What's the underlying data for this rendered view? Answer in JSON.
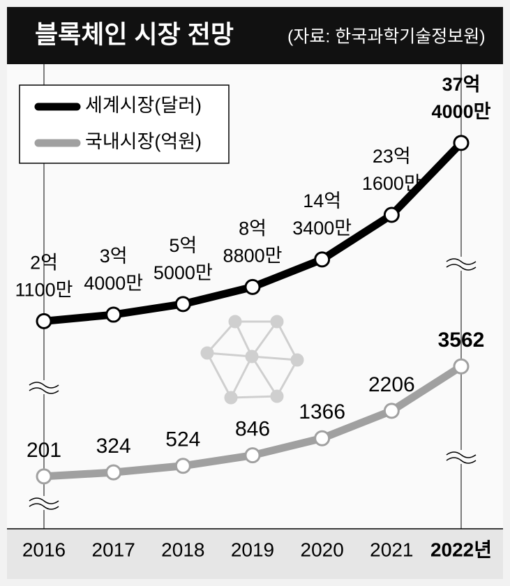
{
  "chart_data": {
    "type": "line",
    "title": "블록체인 시장 전망",
    "source": "(자료: 한국과학기술정보원)",
    "categories": [
      "2016",
      "2017",
      "2018",
      "2019",
      "2020",
      "2021",
      "2022년"
    ],
    "series": [
      {
        "name": "세계시장(달러)",
        "color": "#000000",
        "values": [
          211000000,
          340000000,
          550000000,
          888000000,
          1434000000,
          2316000000,
          3740000000
        ],
        "value_labels": [
          "2억 1100만",
          "3억 4000만",
          "5억 5000만",
          "8억 8800만",
          "14억 3400만",
          "23억 1600만",
          "37억 4000만"
        ]
      },
      {
        "name": "국내시장(억원)",
        "color": "#a0a0a0",
        "axis": "y2",
        "values": [
          201,
          324,
          524,
          846,
          1366,
          2206,
          3562
        ]
      }
    ],
    "ylim": [
      -3900000000,
      5300000000
    ],
    "y2lim": [
      -1400,
      12800
    ]
  }
}
